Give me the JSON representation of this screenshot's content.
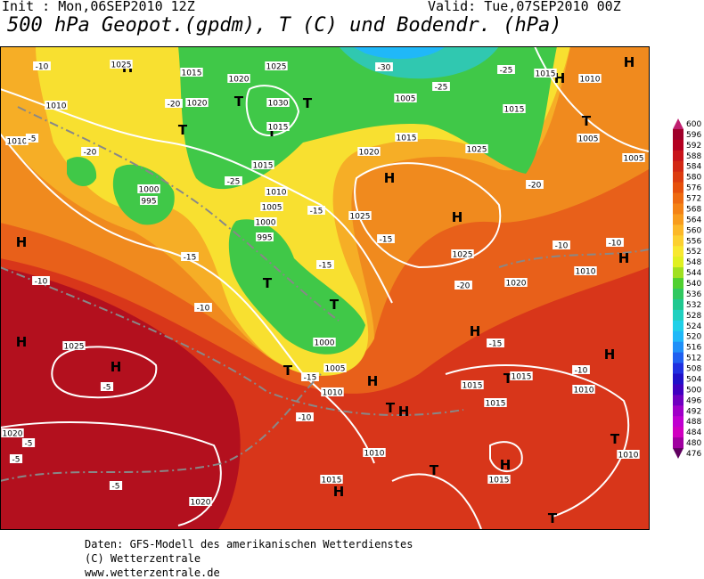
{
  "header": {
    "init": "Init : Mon,06SEP2010 12Z",
    "valid": "Valid: Tue,07SEP2010 00Z",
    "title": "500 hPa Geopot.(gpdm), T (C) und Bodendr. (hPa)"
  },
  "colorbar": {
    "labels": [
      "600",
      "596",
      "592",
      "588",
      "584",
      "580",
      "576",
      "572",
      "568",
      "564",
      "560",
      "556",
      "552",
      "548",
      "544",
      "540",
      "536",
      "532",
      "528",
      "524",
      "520",
      "516",
      "512",
      "508",
      "504",
      "500",
      "496",
      "492",
      "488",
      "484",
      "480",
      "476"
    ]
  },
  "map_labels": [
    "H",
    "H",
    "H",
    "H",
    "H",
    "H",
    "H",
    "H",
    "H",
    "H",
    "H",
    "H",
    "H",
    "H",
    "H",
    "T",
    "T",
    "T",
    "T",
    "T",
    "T",
    "T",
    "T",
    "T",
    "T",
    "T",
    "T",
    "T",
    "1025",
    "1015",
    "1020",
    "1025",
    "1010",
    "1010",
    "1000",
    "995",
    "1030",
    "1015",
    "1020",
    "1015",
    "1010",
    "1005",
    "1000",
    "995",
    "1015",
    "1020",
    "1025",
    "1015",
    "1025",
    "1005",
    "1005",
    "1025",
    "1020",
    "1010",
    "1000",
    "1005",
    "1010",
    "1025",
    "1020",
    "1020",
    "1015",
    "1010",
    "1015",
    "1015",
    "1015",
    "1010",
    "1015",
    "1010",
    "1005",
    "1015",
    "1010",
    "-10",
    "-20",
    "-5",
    "-20",
    "-15",
    "-10",
    "-10",
    "-5",
    "-5",
    "-5",
    "-5",
    "-10",
    "-15",
    "-15",
    "-10",
    "-10",
    "-10",
    "-15",
    "-20",
    "-25",
    "-25",
    "-25",
    "-30",
    "-20",
    "-15",
    "-15"
  ],
  "footer": {
    "lines": [
      "Daten: GFS-Modell des amerikanischen Wetterdienstes",
      "(C) Wetterzentrale",
      "www.wetterzentrale.de"
    ]
  }
}
